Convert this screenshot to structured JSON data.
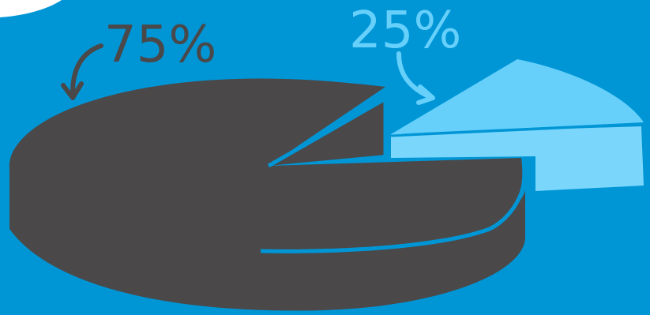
{
  "colors": {
    "background": "#0096d6",
    "large_slice": "#4a4849",
    "small_slice": "#66d0fb",
    "small_slice_side": "#7ad6fb",
    "corner_bubble": "#ffffff"
  },
  "chart_data": {
    "type": "pie",
    "style": "3d-exploded",
    "slices": [
      {
        "label": "75%",
        "value": 75,
        "color": "#4a4849"
      },
      {
        "label": "25%",
        "value": 25,
        "color": "#66d0fb"
      }
    ]
  }
}
